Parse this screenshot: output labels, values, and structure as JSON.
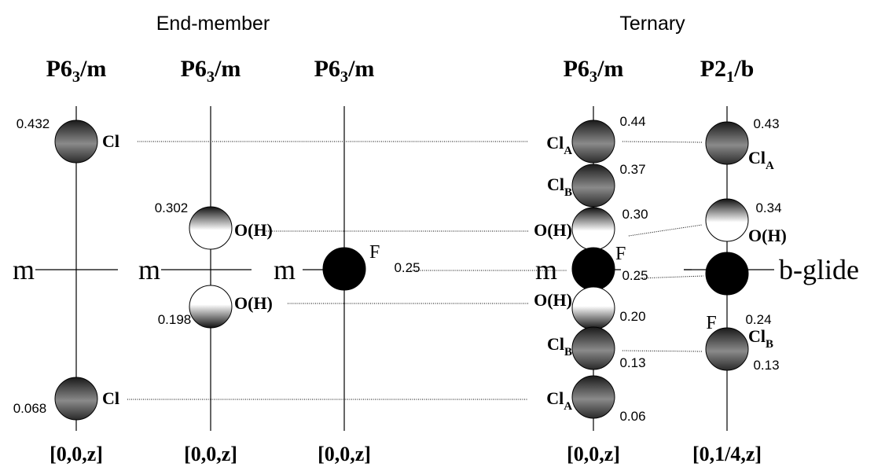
{
  "headings": [
    "End-member",
    "Ternary"
  ],
  "columns": [
    {
      "title": {
        "text": "P6",
        "sub": "3",
        "tail": "/m"
      },
      "mirror": "m",
      "coordinate": "[0,0,z]",
      "atoms": [
        {
          "label": {
            "text": "Cl"
          },
          "value": "0.432"
        },
        {
          "label": {
            "text": "Cl"
          },
          "value": "0.068"
        }
      ]
    },
    {
      "title": {
        "text": "P6",
        "sub": "3",
        "tail": "/m"
      },
      "mirror": "m",
      "coordinate": "[0,0,z]",
      "atoms": [
        {
          "label": {
            "text": "O(H)"
          },
          "value": "0.302"
        },
        {
          "label": {
            "text": "O(H)"
          },
          "value": "0.198"
        }
      ]
    },
    {
      "title": {
        "text": "P6",
        "sub": "3",
        "tail": "/m"
      },
      "mirror": "m",
      "coordinate": "[0,0,z]",
      "atoms": [
        {
          "label": {
            "text": "F"
          },
          "value": "0.25"
        }
      ]
    },
    {
      "title": {
        "text": "P6",
        "sub": "3",
        "tail": "/m"
      },
      "mirror": "m",
      "coordinate": "[0,0,z]",
      "atoms": [
        {
          "label": {
            "text": "Cl",
            "sub": "A"
          },
          "value": "0.44"
        },
        {
          "label": {
            "text": "Cl",
            "sub": "B"
          },
          "value": "0.37"
        },
        {
          "label": {
            "text": "O(H)"
          },
          "value": "0.30"
        },
        {
          "label": {
            "text": "F"
          },
          "value": "0.25"
        },
        {
          "label": {
            "text": "O(H)"
          },
          "value": "0.20"
        },
        {
          "label": {
            "text": "Cl",
            "sub": "B"
          },
          "value": "0.13"
        },
        {
          "label": {
            "text": "Cl",
            "sub": "A"
          },
          "value": "0.06"
        }
      ]
    },
    {
      "title": {
        "text": "P2",
        "sub": "1",
        "tail": "/b"
      },
      "mirror": "b-glide",
      "coordinate": "[0,1/4,z]",
      "atoms": [
        {
          "label": {
            "text": "Cl",
            "sub": "A"
          },
          "value": "0.43"
        },
        {
          "label": {
            "text": "O(H)"
          },
          "value": "0.34"
        },
        {
          "label": {
            "text": "F"
          },
          "value": "0.24"
        },
        {
          "label": {
            "text": "Cl",
            "sub": "B"
          },
          "value": "0.13"
        }
      ]
    }
  ]
}
